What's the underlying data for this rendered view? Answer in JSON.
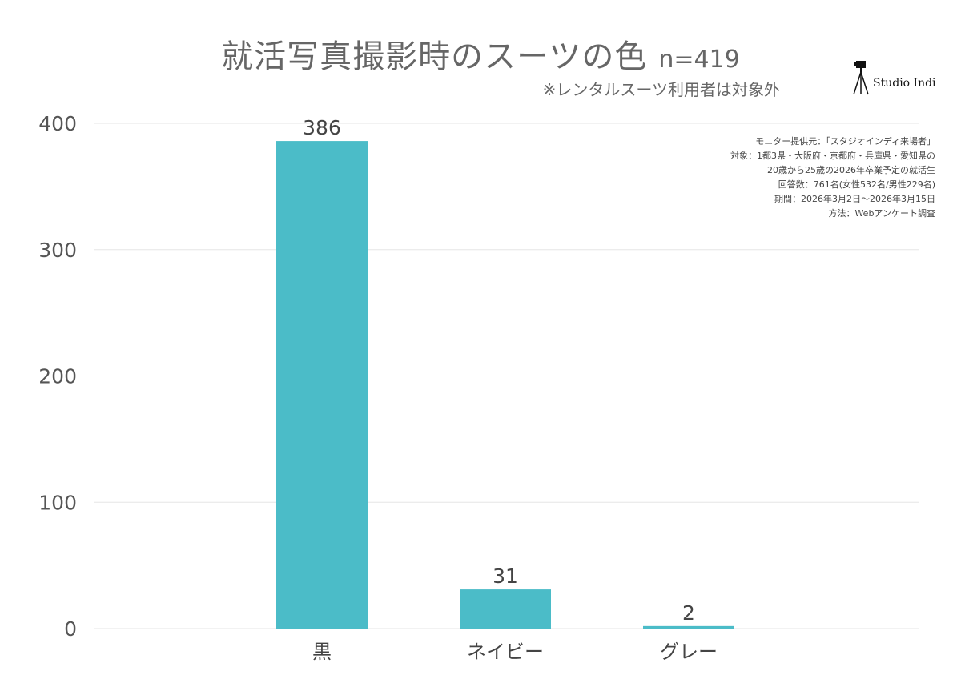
{
  "header": {
    "title": "就活写真撮影時のスーツの色",
    "n_label": "n=419",
    "subtitle": "※レンタルスーツ利用者は対象外"
  },
  "logo": {
    "text": "Studio Indi",
    "icon": "camera-tripod-icon"
  },
  "notes": [
    "モニター提供元：「スタジオインディ来場者」",
    "対象：1都3県・大阪府・京都府・兵庫県・愛知県の",
    "20歳から25歳の2026年卒業予定の就活生",
    "回答数：761名(女性532名/男性229名)",
    "期間：2026年3月2日〜2026年3月15日",
    "方法：Webアンケート調査"
  ],
  "chart_data": {
    "type": "bar",
    "title": "就活写真撮影時のスーツの色",
    "categories": [
      "黒",
      "ネイビー",
      "グレー"
    ],
    "values": [
      386,
      31,
      2
    ],
    "ylim": [
      0,
      400
    ],
    "yticks": [
      0,
      100,
      200,
      300,
      400
    ],
    "grid": true,
    "bar_color": "#4bbcc8",
    "grid_color": "#e6e6e6"
  }
}
